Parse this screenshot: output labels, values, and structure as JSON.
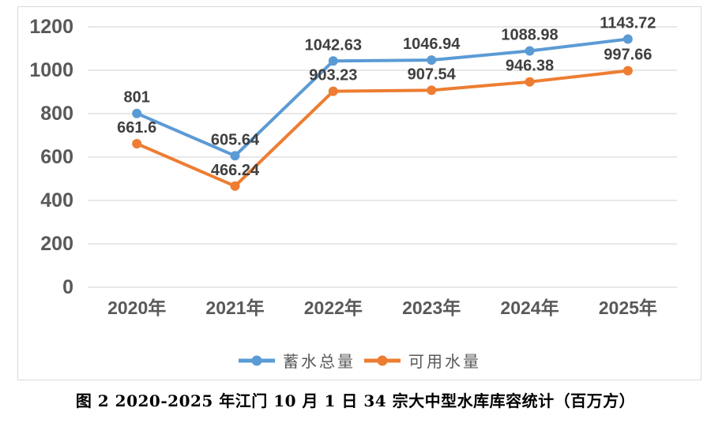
{
  "figure": {
    "caption": "图 2 2020-2025 年江门 10 月 1 日 34 宗大中型水库库容统计（百万方）"
  },
  "chart_data": {
    "type": "line",
    "title": "",
    "xlabel": "",
    "ylabel": "",
    "categories": [
      "2020年",
      "2021年",
      "2022年",
      "2023年",
      "2024年",
      "2025年"
    ],
    "series": [
      {
        "name": "蓄水总量",
        "color": "#5b9bd5",
        "values": [
          801,
          605.64,
          1042.63,
          1046.94,
          1088.98,
          1143.72
        ],
        "labels": [
          "801",
          "605.64",
          "1042.63",
          "1046.94",
          "1088.98",
          "1143.72"
        ]
      },
      {
        "name": "可用水量",
        "color": "#ed7d31",
        "values": [
          661.6,
          466.24,
          903.23,
          907.54,
          946.38,
          997.66
        ],
        "labels": [
          "661.6",
          "466.24",
          "903.23",
          "907.54",
          "946.38",
          "997.66"
        ]
      }
    ],
    "ylim": [
      0,
      1200
    ],
    "yticks": [
      0,
      200,
      400,
      600,
      800,
      1000,
      1200
    ],
    "grid": true,
    "legend_position": "bottom",
    "marker": "circle",
    "line_width": 4,
    "axis_label_color": "#595959",
    "data_label_color": "#3f3f3f",
    "gridline_color": "#d9d9d9"
  }
}
